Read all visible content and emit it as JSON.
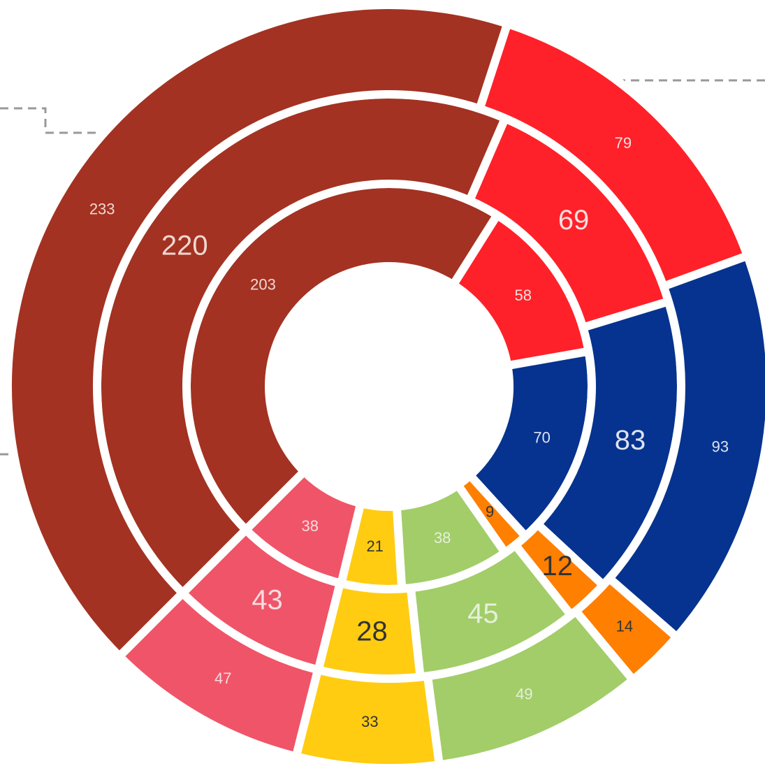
{
  "chart_data": {
    "type": "donut",
    "colors": [
      "#a33222",
      "#ff2129",
      "#06338f",
      "#ff7f00",
      "#a2cd69",
      "#ffcc11",
      "#f05468"
    ],
    "label_colors": [
      "#f0d8d2",
      "#f8e0e0",
      "#dde3f0",
      "#333333",
      "#e6efda",
      "#333333",
      "#f6dde0"
    ],
    "series": [
      {
        "values": [
          203,
          58,
          70,
          9,
          38,
          21,
          38
        ]
      },
      {
        "values": [
          220,
          69,
          83,
          12,
          45,
          28,
          43
        ]
      },
      {
        "values": [
          233,
          79,
          93,
          14,
          49,
          33,
          47
        ]
      }
    ]
  }
}
